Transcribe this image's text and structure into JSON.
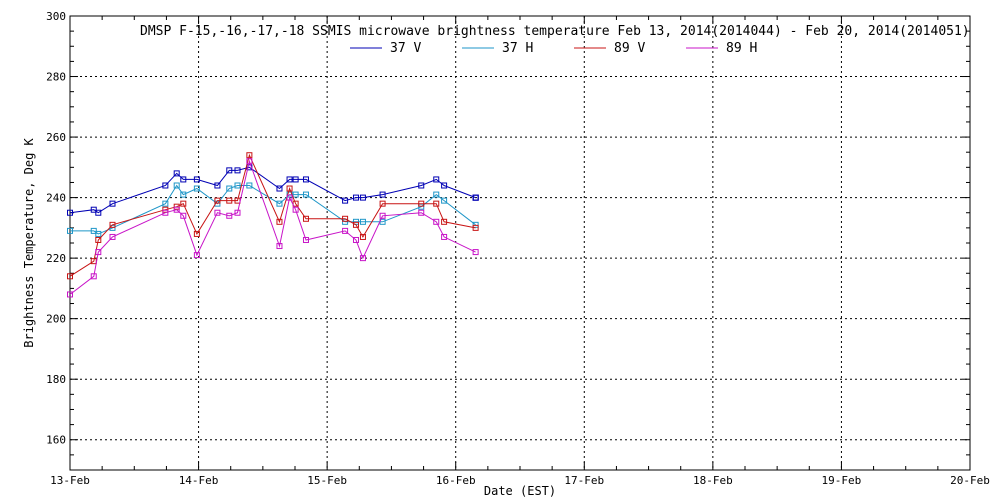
{
  "chart_data": {
    "type": "line",
    "title": "DMSP F-15,-16,-17,-18 SSMIS microwave brightness temperature Feb 13, 2014(2014044) - Feb 20, 2014(2014051)",
    "xlabel": "Date (EST)",
    "ylabel": "Brightness Temperature, Deg K",
    "xlim": [
      "2014-02-13 00:00",
      "2014-02-20 00:00"
    ],
    "ylim": [
      150,
      300
    ],
    "x_tick_labels": [
      "13-Feb",
      "14-Feb",
      "15-Feb",
      "16-Feb",
      "17-Feb",
      "18-Feb",
      "19-Feb",
      "20-Feb"
    ],
    "y_ticks": [
      160,
      180,
      200,
      220,
      240,
      260,
      280,
      300
    ],
    "grid": true,
    "legend": "top",
    "series": [
      {
        "name": "37 V",
        "color": "#0000b4",
        "points": [
          [
            "2014-02-13 00:00",
            235
          ],
          [
            "2014-02-13 04:26",
            236
          ],
          [
            "2014-02-13 05:17",
            235
          ],
          [
            "2014-02-13 07:56",
            238
          ],
          [
            "2014-02-13 17:48",
            244
          ],
          [
            "2014-02-13 19:55",
            248
          ],
          [
            "2014-02-13 21:09",
            246
          ],
          [
            "2014-02-13 23:41",
            246
          ],
          [
            "2014-02-14 03:31",
            244
          ],
          [
            "2014-02-14 05:44",
            249
          ],
          [
            "2014-02-14 07:16",
            249
          ],
          [
            "2014-02-14 09:29",
            250
          ],
          [
            "2014-02-14 15:06",
            243
          ],
          [
            "2014-02-14 16:59",
            246
          ],
          [
            "2014-02-14 18:07",
            246
          ],
          [
            "2014-02-14 20:03",
            246
          ],
          [
            "2014-02-15 03:21",
            239
          ],
          [
            "2014-02-15 05:23",
            240
          ],
          [
            "2014-02-15 06:41",
            240
          ],
          [
            "2014-02-15 10:21",
            241
          ],
          [
            "2014-02-15 17:34",
            244
          ],
          [
            "2014-02-15 20:22",
            246
          ],
          [
            "2014-02-15 21:50",
            244
          ],
          [
            "2014-02-16 03:43",
            240
          ],
          [
            "2014-02-16 03:43",
            240
          ],
          [
            "2014-02-16 03:43",
            240
          ],
          [
            "2014-02-16 03:43",
            240
          ],
          [
            "2014-02-16 03:43",
            240
          ]
        ]
      },
      {
        "name": "37 H",
        "color": "#1e96c8",
        "points": [
          [
            "2014-02-13 00:00",
            229
          ],
          [
            "2014-02-13 04:26",
            229
          ],
          [
            "2014-02-13 05:17",
            228
          ],
          [
            "2014-02-13 07:56",
            230
          ],
          [
            "2014-02-13 17:48",
            238
          ],
          [
            "2014-02-13 19:55",
            244
          ],
          [
            "2014-02-13 21:09",
            241
          ],
          [
            "2014-02-13 23:41",
            243
          ],
          [
            "2014-02-14 03:31",
            238
          ],
          [
            "2014-02-14 05:44",
            243
          ],
          [
            "2014-02-14 07:16",
            244
          ],
          [
            "2014-02-14 09:29",
            244
          ],
          [
            "2014-02-14 15:06",
            238
          ],
          [
            "2014-02-14 16:59",
            241
          ],
          [
            "2014-02-14 18:07",
            241
          ],
          [
            "2014-02-14 20:03",
            241
          ],
          [
            "2014-02-15 03:21",
            232
          ],
          [
            "2014-02-15 05:23",
            232
          ],
          [
            "2014-02-15 06:41",
            232
          ],
          [
            "2014-02-15 10:21",
            232
          ],
          [
            "2014-02-15 17:34",
            237
          ],
          [
            "2014-02-15 20:22",
            241
          ],
          [
            "2014-02-15 21:50",
            239
          ],
          [
            "2014-02-16 03:43",
            231
          ]
        ]
      },
      {
        "name": "89 V",
        "color": "#c81414",
        "points": [
          [
            "2014-02-13 00:00",
            214
          ],
          [
            "2014-02-13 04:26",
            219
          ],
          [
            "2014-02-13 05:17",
            226
          ],
          [
            "2014-02-13 07:56",
            231
          ],
          [
            "2014-02-13 17:48",
            236
          ],
          [
            "2014-02-13 19:55",
            237
          ],
          [
            "2014-02-13 21:09",
            238
          ],
          [
            "2014-02-13 23:41",
            228
          ],
          [
            "2014-02-14 03:31",
            239
          ],
          [
            "2014-02-14 05:44",
            239
          ],
          [
            "2014-02-14 07:16",
            239
          ],
          [
            "2014-02-14 09:29",
            254
          ],
          [
            "2014-02-14 15:06",
            232
          ],
          [
            "2014-02-14 16:59",
            243
          ],
          [
            "2014-02-14 18:07",
            238
          ],
          [
            "2014-02-14 20:03",
            233
          ],
          [
            "2014-02-15 03:21",
            233
          ],
          [
            "2014-02-15 05:23",
            231
          ],
          [
            "2014-02-15 06:41",
            227
          ],
          [
            "2014-02-15 10:21",
            238
          ],
          [
            "2014-02-15 17:34",
            238
          ],
          [
            "2014-02-15 20:22",
            238
          ],
          [
            "2014-02-15 21:50",
            232
          ],
          [
            "2014-02-16 03:43",
            230
          ]
        ]
      },
      {
        "name": "89 H",
        "color": "#c814c8",
        "points": [
          [
            "2014-02-13 00:00",
            208
          ],
          [
            "2014-02-13 04:26",
            214
          ],
          [
            "2014-02-13 05:17",
            222
          ],
          [
            "2014-02-13 07:56",
            227
          ],
          [
            "2014-02-13 17:48",
            235
          ],
          [
            "2014-02-13 19:55",
            236
          ],
          [
            "2014-02-13 21:09",
            234
          ],
          [
            "2014-02-13 23:41",
            221
          ],
          [
            "2014-02-14 03:31",
            235
          ],
          [
            "2014-02-14 05:44",
            234
          ],
          [
            "2014-02-14 07:16",
            235
          ],
          [
            "2014-02-14 09:29",
            252
          ],
          [
            "2014-02-14 15:06",
            224
          ],
          [
            "2014-02-14 16:59",
            240
          ],
          [
            "2014-02-14 18:07",
            236
          ],
          [
            "2014-02-14 20:03",
            226
          ],
          [
            "2014-02-15 03:21",
            229
          ],
          [
            "2014-02-15 05:23",
            226
          ],
          [
            "2014-02-15 06:41",
            220
          ],
          [
            "2014-02-15 10:21",
            234
          ],
          [
            "2014-02-15 17:34",
            235
          ],
          [
            "2014-02-15 20:22",
            232
          ],
          [
            "2014-02-15 21:50",
            227
          ],
          [
            "2014-02-16 03:43",
            222
          ]
        ]
      }
    ]
  }
}
